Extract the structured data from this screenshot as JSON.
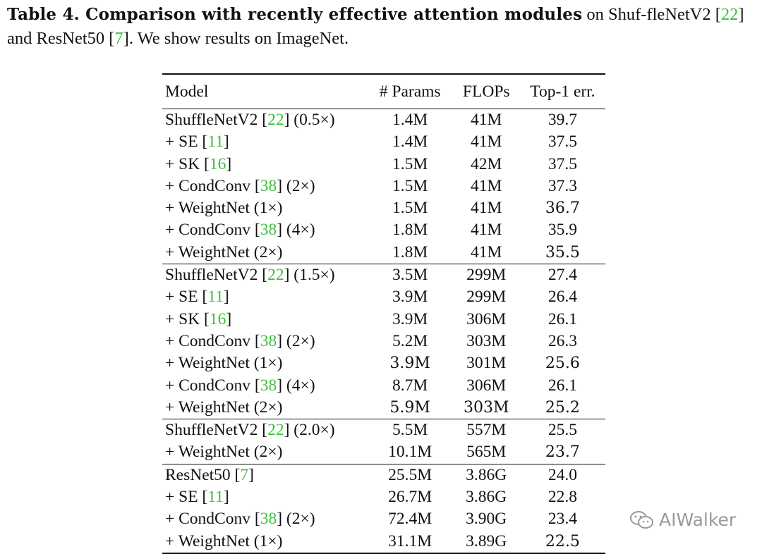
{
  "caption": {
    "label": "Table 4. Comparison with recently effective attention modules",
    "text_a": " on Shuf-fleNetV2 [",
    "cite_a": "22",
    "text_b": "] and ResNet50 [",
    "cite_b": "7",
    "text_c": "]. We show results on ImageNet."
  },
  "table": {
    "headers": {
      "model": "Model",
      "params": "# Params",
      "flops": "FLOPs",
      "top1": "Top-1 err."
    },
    "groups": [
      {
        "rows": [
          {
            "pre": "ShuffleNetV2 [",
            "cite": "22",
            "post": "] (0.5×)",
            "params": "1.4M",
            "flops": "41M",
            "top1": "39.7"
          },
          {
            "pre": "+ SE [",
            "cite": "11",
            "post": "]",
            "params": "1.4M",
            "flops": "41M",
            "top1": "37.5"
          },
          {
            "pre": "+ SK [",
            "cite": "16",
            "post": "]",
            "params": "1.5M",
            "flops": "42M",
            "top1": "37.5"
          },
          {
            "pre": "+ CondConv [",
            "cite": "38",
            "post": "] (2×)",
            "params": "1.5M",
            "flops": "41M",
            "top1": "37.3"
          },
          {
            "pre": "+ WeightNet (1×)",
            "params": "1.5M",
            "flops": "41M",
            "top1": "36.7",
            "bold": [
              "top1"
            ]
          },
          {
            "pre": "+ CondConv [",
            "cite": "38",
            "post": "] (4×)",
            "params": "1.8M",
            "flops": "41M",
            "top1": "35.9"
          },
          {
            "pre": "+ WeightNet (2×)",
            "params": "1.8M",
            "flops": "41M",
            "top1": "35.5",
            "bold": [
              "top1"
            ]
          }
        ]
      },
      {
        "rows": [
          {
            "pre": "ShuffleNetV2 [",
            "cite": "22",
            "post": "] (1.5×)",
            "params": "3.5M",
            "flops": "299M",
            "top1": "27.4"
          },
          {
            "pre": "+ SE [",
            "cite": "11",
            "post": "]",
            "params": "3.9M",
            "flops": "299M",
            "top1": "26.4"
          },
          {
            "pre": "+ SK [",
            "cite": "16",
            "post": "]",
            "params": "3.9M",
            "flops": "306M",
            "top1": "26.1"
          },
          {
            "pre": "+ CondConv [",
            "cite": "38",
            "post": "] (2×)",
            "params": "5.2M",
            "flops": "303M",
            "top1": "26.3"
          },
          {
            "pre": "+ WeightNet (1×)",
            "params": "3.9M",
            "flops": "301M",
            "top1": "25.6",
            "bold": [
              "params",
              "top1"
            ]
          },
          {
            "pre": "+ CondConv [",
            "cite": "38",
            "post": "] (4×)",
            "params": "8.7M",
            "flops": "306M",
            "top1": "26.1"
          },
          {
            "pre": "+ WeightNet (2×)",
            "params": "5.9M",
            "flops": "303M",
            "top1": "25.2",
            "bold": [
              "params",
              "flops",
              "top1"
            ]
          }
        ]
      },
      {
        "rows": [
          {
            "pre": "ShuffleNetV2 [",
            "cite": "22",
            "post": "] (2.0×)",
            "params": "5.5M",
            "flops": "557M",
            "top1": "25.5"
          },
          {
            "pre": "+ WeightNet (2×)",
            "params": "10.1M",
            "flops": "565M",
            "top1": "23.7",
            "bold": [
              "top1"
            ]
          }
        ]
      },
      {
        "rows": [
          {
            "pre": "ResNet50 [",
            "cite": "7",
            "post": "]",
            "params": "25.5M",
            "flops": "3.86G",
            "top1": "24.0"
          },
          {
            "pre": "+ SE [",
            "cite": "11",
            "post": "]",
            "params": "26.7M",
            "flops": "3.86G",
            "top1": "22.8"
          },
          {
            "pre": "+ CondConv [",
            "cite": "38",
            "post": "] (2×)",
            "params": "72.4M",
            "flops": "3.90G",
            "top1": "23.4"
          },
          {
            "pre": "+ WeightNet (1×)",
            "params": "31.1M",
            "flops": "3.89G",
            "top1": "22.5",
            "bold": [
              "top1"
            ]
          }
        ]
      }
    ]
  },
  "watermark": {
    "text": "AIWalker"
  },
  "colors": {
    "citation": "#3cbf3c",
    "text": "#111111",
    "watermark": "#9a9a9a"
  }
}
